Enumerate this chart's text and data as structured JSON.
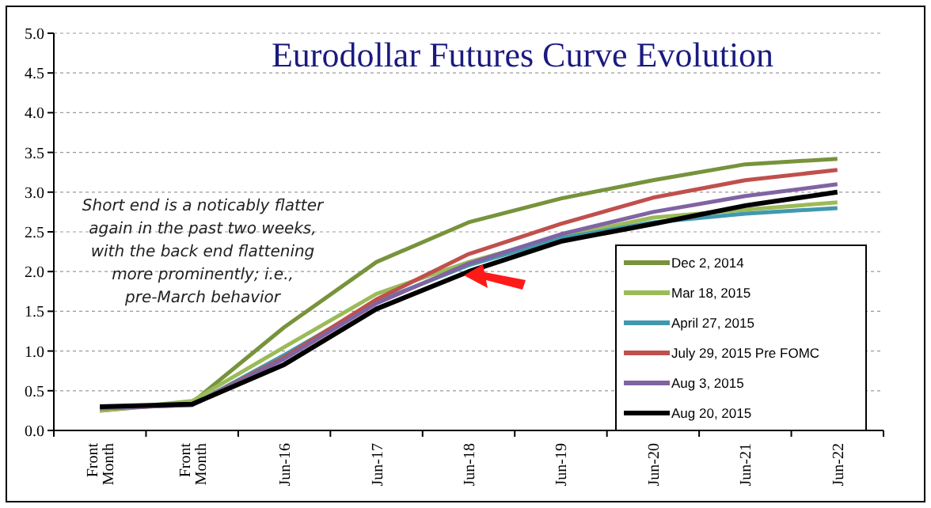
{
  "chart_data": {
    "type": "line",
    "title": "Eurodollar Futures Curve Evolution",
    "annotations": [
      "Short end is a noticably flatter again in the past two weeks, with the back end flattening more prominently; i.e., pre-March behavior"
    ],
    "categories": [
      "Front Month",
      "Front Month",
      "Jun-16",
      "Jun-17",
      "Jun-18",
      "Jun-19",
      "Jun-20",
      "Jun-21",
      "Jun-22"
    ],
    "series": [
      {
        "name": "Dec 2, 2014",
        "color": "#77933c",
        "values": [
          0.25,
          0.35,
          1.3,
          2.12,
          2.62,
          2.92,
          3.15,
          3.35,
          3.42
        ]
      },
      {
        "name": "Mar 18, 2015",
        "color": "#9bbb59",
        "values": [
          0.25,
          0.37,
          1.05,
          1.72,
          2.12,
          2.44,
          2.68,
          2.78,
          2.87
        ]
      },
      {
        "name": "April 27, 2015",
        "color": "#4198af",
        "values": [
          0.3,
          0.32,
          0.95,
          1.62,
          2.08,
          2.42,
          2.62,
          2.73,
          2.8
        ]
      },
      {
        "name": "July 29, 2015 Pre FOMC",
        "color": "#c0504d",
        "values": [
          0.28,
          0.32,
          0.92,
          1.65,
          2.22,
          2.6,
          2.93,
          3.15,
          3.28
        ]
      },
      {
        "name": "Aug 3, 2015",
        "color": "#8064a2",
        "values": [
          0.28,
          0.32,
          0.9,
          1.6,
          2.1,
          2.47,
          2.75,
          2.95,
          3.1
        ]
      },
      {
        "name": "Aug 20, 2015",
        "color": "#000000",
        "values": [
          0.3,
          0.33,
          0.83,
          1.53,
          2.0,
          2.38,
          2.6,
          2.83,
          3.0
        ]
      }
    ],
    "ylim": [
      0,
      5
    ],
    "yticks": [
      {
        "value": 0,
        "label": "0.0"
      },
      {
        "value": 0.5,
        "label": "0.5"
      },
      {
        "value": 1,
        "label": "1.0"
      },
      {
        "value": 1.5,
        "label": "1.5"
      },
      {
        "value": 2,
        "label": "2.0"
      },
      {
        "value": 2.5,
        "label": "2.5"
      },
      {
        "value": 3,
        "label": "3.0"
      },
      {
        "value": 3.5,
        "label": "3.5"
      },
      {
        "value": 4,
        "label": "4.0"
      },
      {
        "value": 4.5,
        "label": "4.5"
      },
      {
        "value": 5,
        "label": "5.0"
      }
    ],
    "grid": "y",
    "legend": "bottom right",
    "marker": "none",
    "line_style": "solid"
  }
}
